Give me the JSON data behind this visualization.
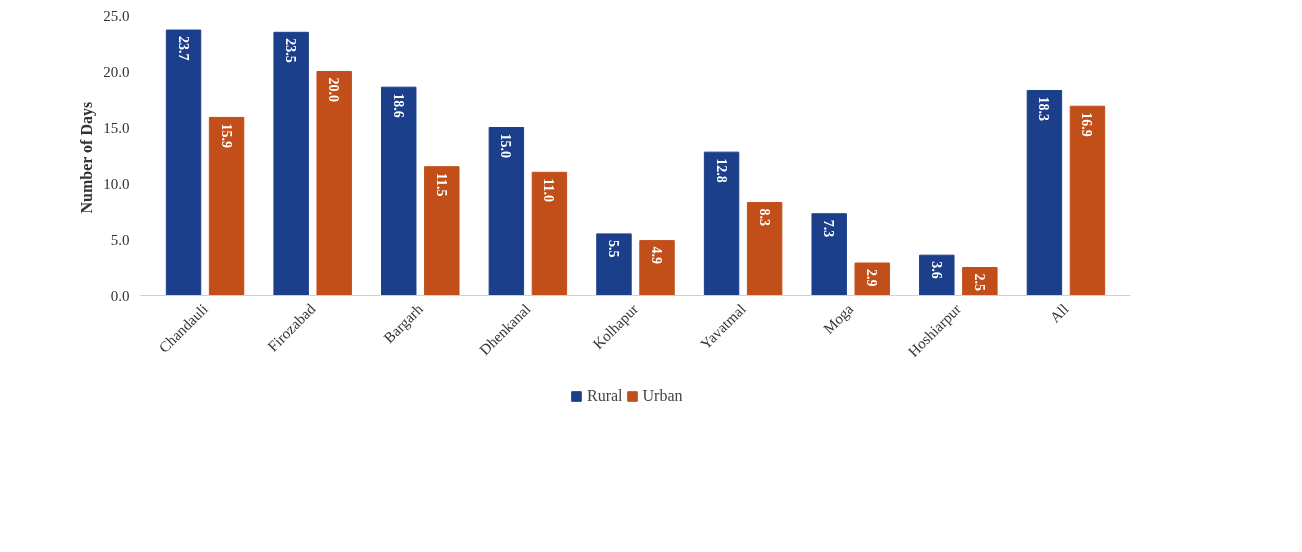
{
  "chart_data": {
    "type": "bar",
    "ylabel": "Number of  Days",
    "categories": [
      "Chandauli",
      "Firozabad",
      "Bargarh",
      "Dhenkanal",
      "Kolhapur",
      "Yavatmal",
      "Moga",
      "Hoshiarpur",
      "All"
    ],
    "series": [
      {
        "name": "Rural",
        "color": "#1b3f8b",
        "values": [
          23.7,
          23.5,
          18.6,
          15.0,
          5.5,
          12.8,
          7.3,
          3.6,
          18.3
        ],
        "value_labels": [
          "23.7",
          "23.5",
          "18.6",
          "15.0",
          "5.5",
          "12.8",
          "7.3",
          "3.6",
          "18.3"
        ]
      },
      {
        "name": "Urban",
        "color": "#c24f1a",
        "values": [
          15.9,
          20.0,
          11.5,
          11.0,
          4.9,
          8.3,
          2.9,
          2.5,
          16.9
        ],
        "value_labels": [
          "15.9",
          "20.0",
          "11.5",
          "11.0",
          "4.9",
          "8.3",
          "2.9",
          "2.5",
          "16.9"
        ]
      }
    ],
    "ylim": [
      0,
      25
    ],
    "yticks": [
      {
        "value": 0,
        "label": "0.0"
      },
      {
        "value": 5,
        "label": "5.0"
      },
      {
        "value": 10,
        "label": "10.0"
      },
      {
        "value": 15,
        "label": "15.0"
      },
      {
        "value": 20,
        "label": "20.0"
      },
      {
        "value": 25,
        "label": "25.0"
      }
    ],
    "grid": false,
    "legend": "bottom"
  }
}
